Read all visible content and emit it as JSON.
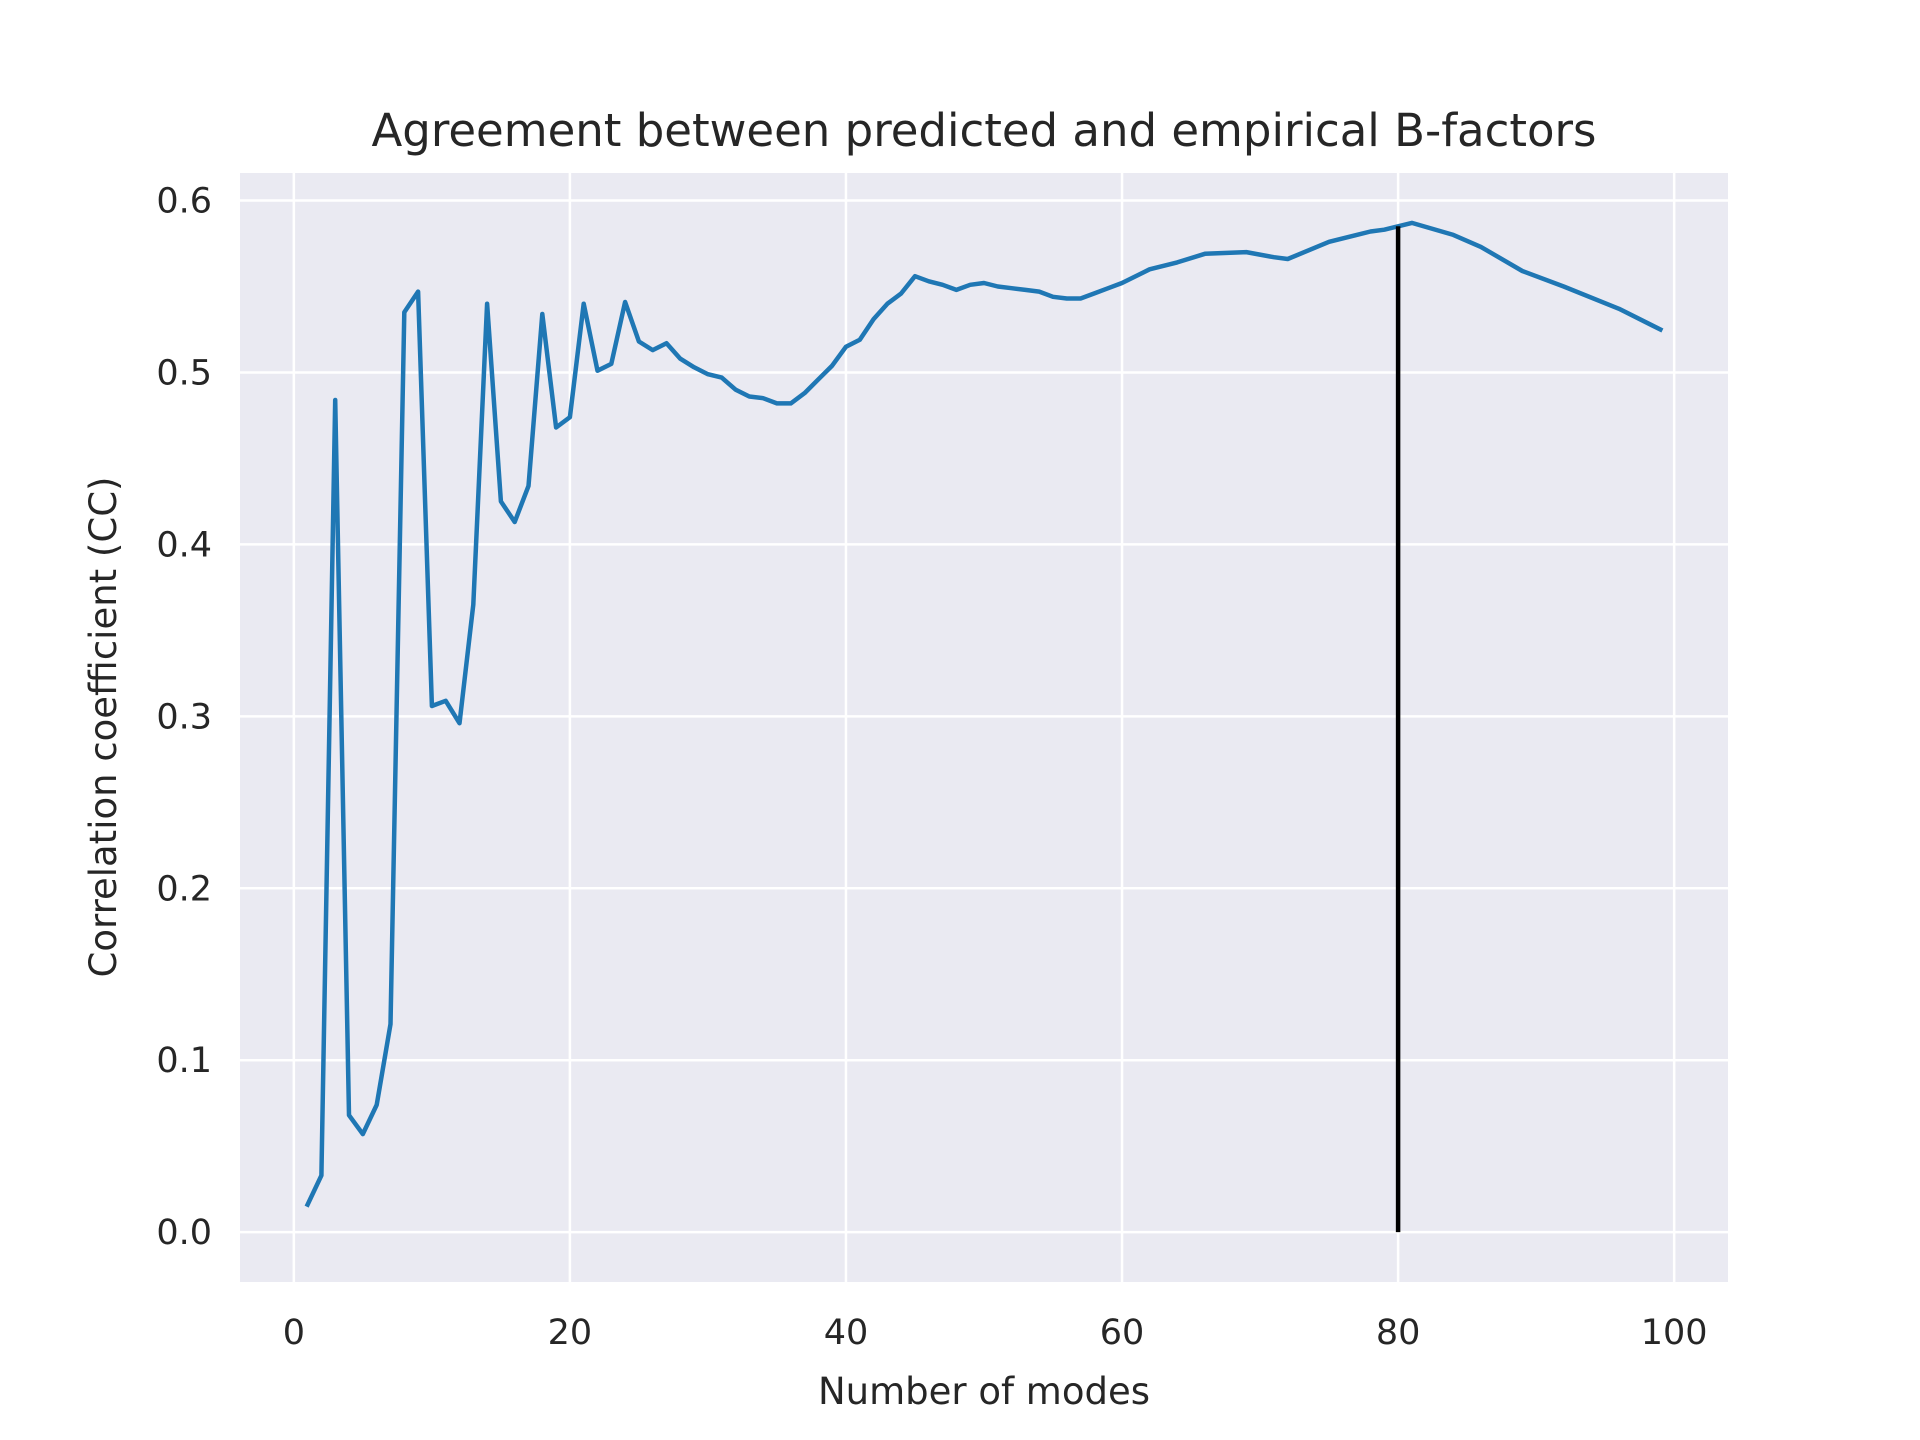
{
  "chart_data": {
    "type": "line",
    "title": "Agreement between predicted and empirical B-factors",
    "xlabel": "Number of modes",
    "ylabel": "Correlation coefficient (CC)",
    "xlim": [
      -3.9,
      103.9
    ],
    "ylim": [
      -0.029,
      0.616
    ],
    "xticks": [
      0,
      20,
      40,
      60,
      80,
      100
    ],
    "yticks": [
      0.0,
      0.1,
      0.2,
      0.3,
      0.4,
      0.5,
      0.6
    ],
    "xtick_labels": [
      "0",
      "20",
      "40",
      "60",
      "80",
      "100"
    ],
    "ytick_labels": [
      "0.0",
      "0.1",
      "0.2",
      "0.3",
      "0.4",
      "0.5",
      "0.6"
    ],
    "grid": true,
    "background": "#eaeaf2",
    "series": [
      {
        "color": "#1f77b4",
        "x": [
          1,
          2,
          3,
          4,
          5,
          6,
          7,
          8,
          9,
          10,
          11,
          12,
          13,
          14,
          15,
          16,
          17,
          18,
          19,
          20,
          21,
          22,
          23,
          24,
          25,
          26,
          27,
          28,
          29,
          30,
          31,
          32,
          33,
          34,
          35,
          36,
          37,
          38,
          39,
          40,
          41,
          42,
          43,
          44,
          45,
          46,
          47,
          48,
          49,
          50,
          51,
          52,
          53,
          54,
          55,
          56,
          57,
          58,
          59,
          60,
          62,
          64,
          66,
          69,
          71,
          72,
          75,
          77,
          78,
          79,
          80,
          81,
          84,
          86,
          89,
          92,
          96,
          99
        ],
        "y": [
          0.016,
          0.033,
          0.484,
          0.068,
          0.057,
          0.074,
          0.121,
          0.535,
          0.547,
          0.306,
          0.309,
          0.296,
          0.365,
          0.54,
          0.425,
          0.413,
          0.434,
          0.534,
          0.468,
          0.474,
          0.54,
          0.501,
          0.505,
          0.541,
          0.518,
          0.513,
          0.517,
          0.508,
          0.503,
          0.499,
          0.497,
          0.49,
          0.486,
          0.485,
          0.482,
          0.482,
          0.488,
          0.496,
          0.504,
          0.515,
          0.519,
          0.531,
          0.54,
          0.546,
          0.556,
          0.553,
          0.551,
          0.548,
          0.551,
          0.552,
          0.55,
          0.549,
          0.548,
          0.547,
          0.544,
          0.543,
          0.543,
          0.546,
          0.549,
          0.552,
          0.56,
          0.564,
          0.569,
          0.57,
          0.567,
          0.566,
          0.576,
          0.58,
          0.582,
          0.583,
          0.585,
          0.587,
          0.58,
          0.573,
          0.559,
          0.55,
          0.537,
          0.525
        ]
      }
    ],
    "vline": {
      "x": 80,
      "ymin": 0.0,
      "ymax": 0.585,
      "color": "#000000"
    }
  }
}
